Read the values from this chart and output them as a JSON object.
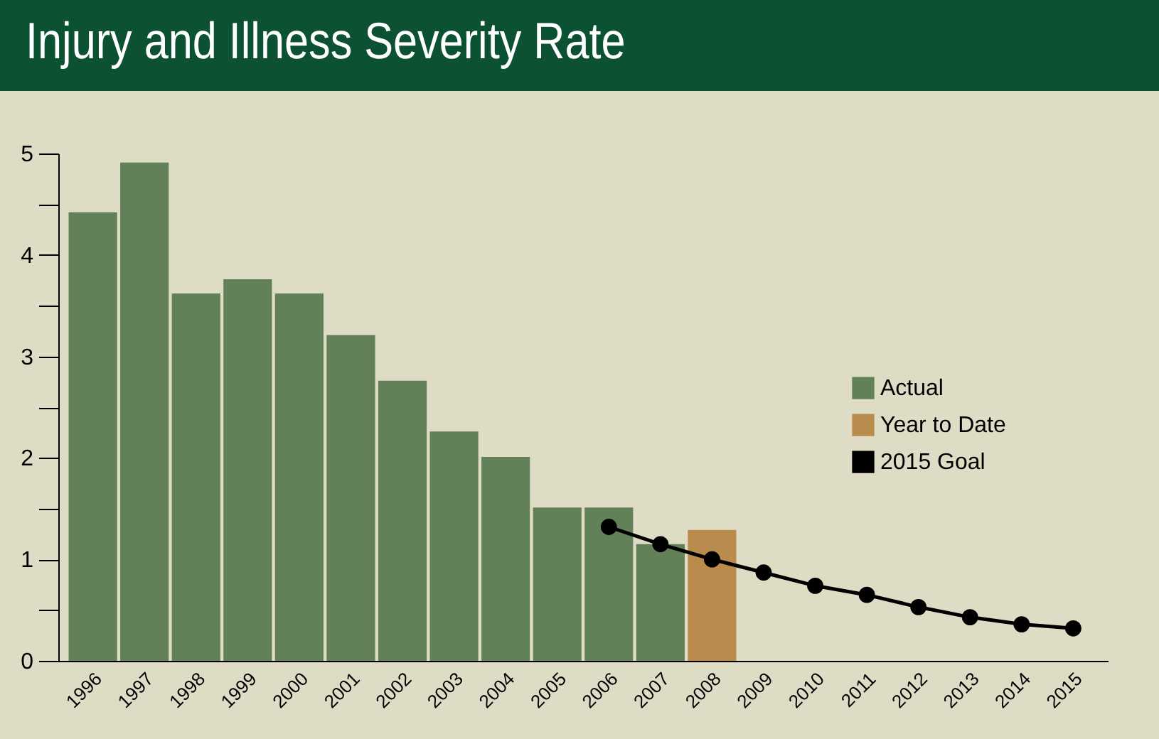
{
  "chart_data": {
    "type": "bar",
    "title": "Injury and Illness Severity Rate",
    "categories": [
      "1996",
      "1997",
      "1998",
      "1999",
      "2000",
      "2001",
      "2002",
      "2003",
      "2004",
      "2005",
      "2006",
      "2007",
      "2008",
      "2009",
      "2010",
      "2011",
      "2012",
      "2013",
      "2014",
      "2015"
    ],
    "series": [
      {
        "name": "Actual",
        "color": "#628159",
        "values": [
          4.42,
          4.91,
          3.62,
          3.76,
          3.62,
          3.21,
          2.76,
          2.26,
          2.01,
          1.51,
          1.51,
          1.15,
          null,
          null,
          null,
          null,
          null,
          null,
          null,
          null
        ]
      },
      {
        "name": "Year to Date",
        "color": "#b98c4d",
        "values": [
          null,
          null,
          null,
          null,
          null,
          null,
          null,
          null,
          null,
          null,
          null,
          null,
          1.29,
          null,
          null,
          null,
          null,
          null,
          null,
          null
        ]
      },
      {
        "name": "2015 Goal",
        "type": "line",
        "color": "#000000",
        "marker": "circle",
        "values": [
          null,
          null,
          null,
          null,
          null,
          null,
          null,
          null,
          null,
          null,
          1.32,
          1.15,
          1.0,
          0.87,
          0.74,
          0.65,
          0.53,
          0.43,
          0.36,
          0.32
        ]
      }
    ],
    "ylim": [
      0,
      5
    ],
    "yticks": [
      0,
      {
        "value": 0.5,
        "label": null
      },
      1,
      {
        "value": 1.5,
        "label": null
      },
      2,
      {
        "value": 2.5,
        "label": null
      },
      3,
      {
        "value": 3.5,
        "label": null
      },
      4,
      {
        "value": 4.5,
        "label": null
      },
      5
    ],
    "grid": false,
    "legend": "right"
  }
}
